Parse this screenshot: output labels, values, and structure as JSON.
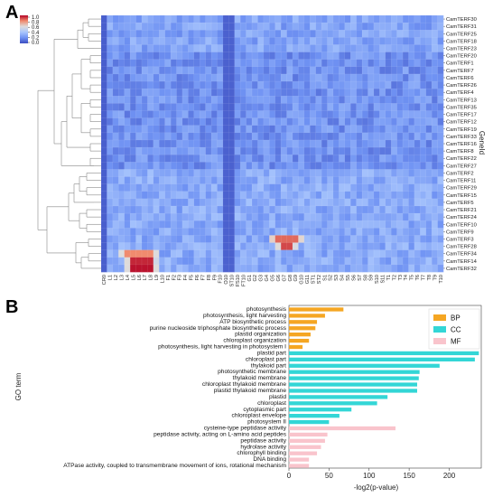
{
  "panels": {
    "a": "A",
    "b": "B"
  },
  "chart_data": [
    {
      "type": "heatmap",
      "panel": "A",
      "colormap": "coolwarm",
      "colorbar": {
        "ticks": [
          "1.0",
          "0.8",
          "0.6",
          "0.4",
          "0.2",
          "0.0"
        ],
        "range": [
          0,
          1
        ]
      },
      "ylabel": "GeneId",
      "columns": [
        "CR0",
        "L1",
        "L2",
        "L3",
        "L4",
        "L5",
        "L6",
        "L7",
        "L8",
        "L9",
        "L10",
        "F1",
        "F2",
        "F3",
        "F4",
        "F5",
        "F6",
        "F7",
        "F8",
        "F9",
        "F10",
        "O10",
        "ST10",
        "FS10",
        "FT10",
        "G1",
        "G2",
        "G3",
        "G4",
        "G5",
        "G6",
        "G7",
        "G8",
        "G9",
        "G10",
        "G11",
        "ST1",
        "ST2",
        "S1",
        "S2",
        "S3",
        "S4",
        "S5",
        "S6",
        "S7",
        "S8",
        "S9",
        "S10",
        "S11",
        "T1",
        "T2",
        "T3",
        "T4",
        "T5",
        "T6",
        "T7",
        "T8",
        "T9",
        "T10"
      ],
      "rows": [
        "CamTERF30",
        "CamTERF31",
        "CamTERF25",
        "CamTERF18",
        "CamTERF23",
        "CamTERF20",
        "CamTERF1",
        "CamTERF7",
        "CamTERF6",
        "CamTERF26",
        "CamTERF4",
        "CamTERF13",
        "CamTERF35",
        "CamTERF17",
        "CamTERF12",
        "CamTERF19",
        "CamTERF33",
        "CamTERF16",
        "CamTERF8",
        "CamTERF22",
        "CamTERF27",
        "CamTERF2",
        "CamTERF11",
        "CamTERF29",
        "CamTERF15",
        "CamTERF5",
        "CamTERF21",
        "CamTERF24",
        "CamTERF10",
        "CamTERF9",
        "CamTERF3",
        "CamTERF28",
        "CamTERF34",
        "CamTERF14",
        "CamTERF32"
      ],
      "hotspots": [
        {
          "row": "CamTERF3",
          "cols": [
            "G6",
            "G7",
            "G8",
            "G9"
          ],
          "value": 0.85
        },
        {
          "row": "CamTERF28",
          "cols": [
            "G7",
            "G8"
          ],
          "value": 0.9
        },
        {
          "row": "CamTERF34",
          "cols": [
            "L4",
            "L5",
            "L6",
            "L7",
            "L8"
          ],
          "value": 0.8
        },
        {
          "row": "CamTERF14",
          "cols": [
            "L5",
            "L6",
            "L7",
            "L8"
          ],
          "value": 0.95
        },
        {
          "row": "CamTERF32",
          "cols": [
            "L5",
            "L6",
            "L7",
            "L8"
          ],
          "value": 0.98
        }
      ]
    },
    {
      "type": "bar",
      "panel": "B",
      "orientation": "horizontal",
      "xlabel": "-log2(p-value)",
      "ylabel": "GO term",
      "xlim": [
        0,
        240
      ],
      "xticks": [
        0,
        50,
        100,
        150,
        200
      ],
      "legend": {
        "position": "top-right",
        "entries": [
          {
            "name": "BP",
            "color": "#f5a623"
          },
          {
            "name": "CC",
            "color": "#33d6d6"
          },
          {
            "name": "MF",
            "color": "#f9c4cc"
          }
        ]
      },
      "categories": [
        "photosynthesis",
        "photosynthesis, light harvesting",
        "ATP biosynthetic process",
        "purine nucleoside triphosphate biosynthetic process",
        "plastid organization",
        "chloroplast organization",
        "photosynthesis, light harvesting in photosystem I",
        "plastid part",
        "chloroplast part",
        "thylakoid part",
        "photosynthetic membrane",
        "thylakoid membrane",
        "chloroplast thylakoid membrane",
        "plastid thylakoid membrane",
        "plastid",
        "chloroplast",
        "cytoplasmic part",
        "chloroplast envelope",
        "photosystem II",
        "cysteine-type peptidase activity",
        "peptidase activity, acting on L-amino acid peptides",
        "peptidase activity",
        "hydrolase activity",
        "chlorophyll binding",
        "DNA binding",
        "ATPase activity, coupled to transmembrane movement of ions, rotational mechanism"
      ],
      "groups": [
        "BP",
        "BP",
        "BP",
        "BP",
        "BP",
        "BP",
        "BP",
        "CC",
        "CC",
        "CC",
        "CC",
        "CC",
        "CC",
        "CC",
        "CC",
        "CC",
        "CC",
        "CC",
        "CC",
        "MF",
        "MF",
        "MF",
        "MF",
        "MF",
        "MF",
        "MF"
      ],
      "values": [
        68,
        45,
        35,
        33,
        27,
        25,
        17,
        237,
        232,
        188,
        163,
        162,
        160,
        160,
        123,
        110,
        78,
        63,
        50,
        133,
        48,
        45,
        40,
        35,
        25,
        25
      ]
    }
  ]
}
